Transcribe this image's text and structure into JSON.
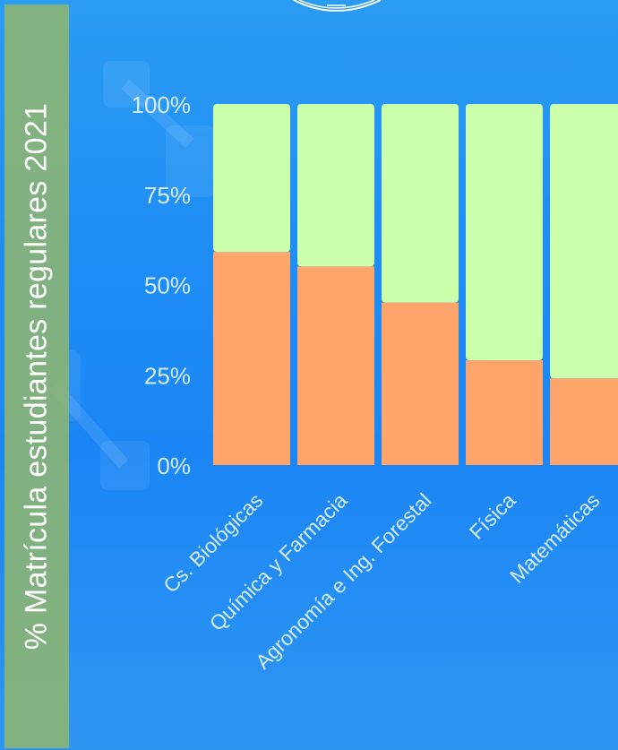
{
  "title": "% Matrícula estudiantes regulares 2021",
  "chart_data": {
    "type": "bar",
    "stacked": true,
    "normalized": true,
    "categories": [
      "Cs. Biológicas",
      "Química y Farmacia",
      "Agronomía e Ing. Forestal",
      "Física",
      "Matemáticas"
    ],
    "series": [
      {
        "values": [
          59,
          55,
          45,
          29,
          24
        ],
        "color": "#ffa56b"
      },
      {
        "values": [
          41,
          45,
          55,
          71,
          76
        ],
        "color": "#ccffab"
      }
    ],
    "y_ticks": [
      "0%",
      "25%",
      "50%",
      "75%",
      "100%"
    ],
    "ylim": [
      0,
      100
    ],
    "grid": false,
    "legend": "none"
  },
  "colors": {
    "background": "#1f8ff5",
    "title_band": "#8ab475",
    "tick_text": "#d6ecff"
  }
}
